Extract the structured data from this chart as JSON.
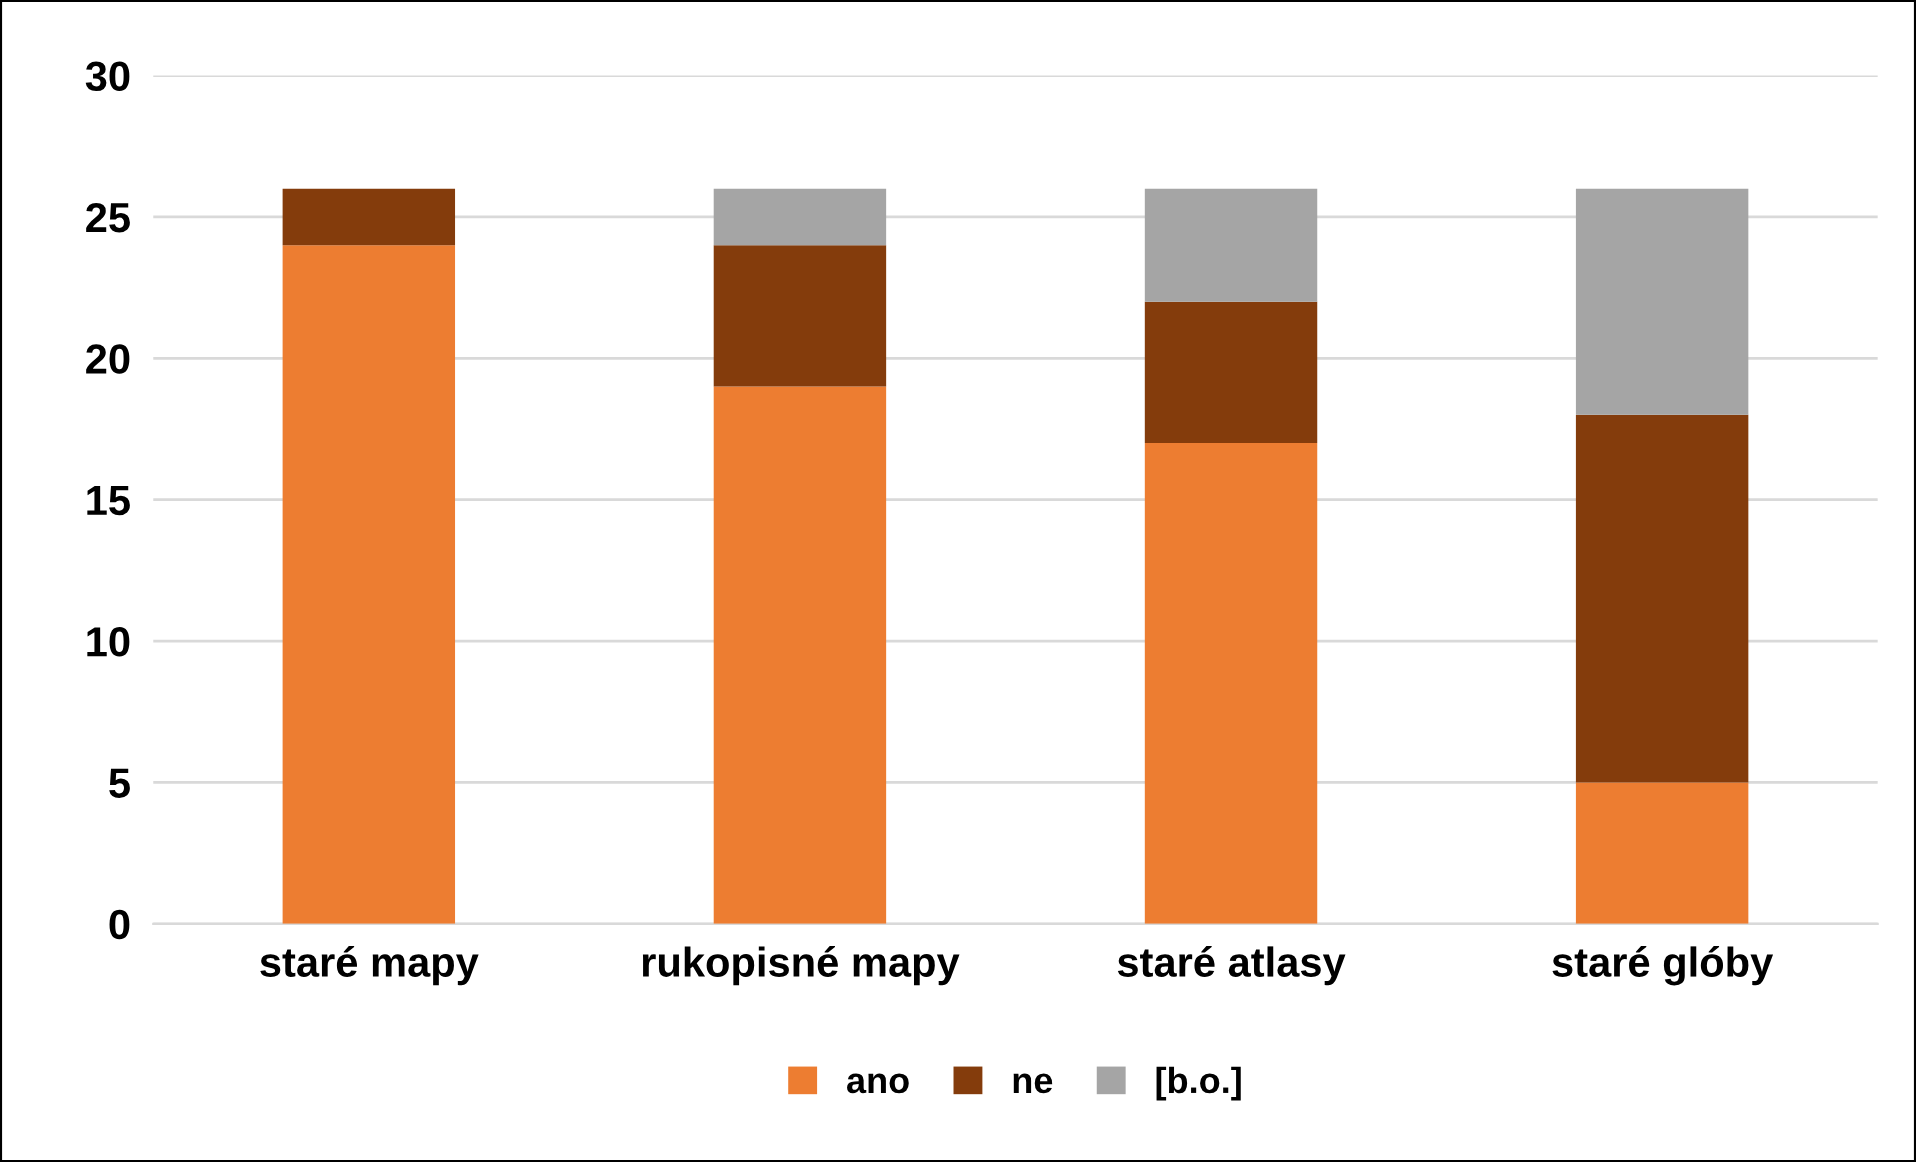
{
  "chart_data": {
    "type": "bar",
    "stacked": true,
    "categories": [
      "staré mapy",
      "rukopisné mapy",
      "staré atlasy",
      "staré glóby"
    ],
    "series": [
      {
        "name": "ano",
        "color": "#ed7d31",
        "values": [
          24,
          19,
          17,
          5
        ]
      },
      {
        "name": "ne",
        "color": "#843c0c",
        "values": [
          2,
          5,
          5,
          13
        ]
      },
      {
        "name": "[b.o.]",
        "color": "#a5a5a5",
        "values": [
          0,
          2,
          4,
          8
        ]
      }
    ],
    "ylim": [
      0,
      30
    ],
    "yticks": [
      0,
      5,
      10,
      15,
      20,
      25,
      30
    ],
    "grid": "y",
    "legend": "bottom"
  }
}
